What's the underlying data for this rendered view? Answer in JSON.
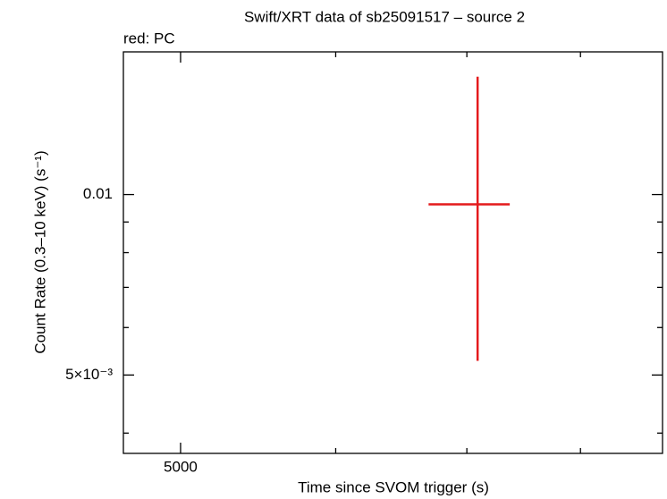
{
  "chart_data": {
    "type": "errorbar",
    "title": "Swift/XRT data of sb25091517 – source 2",
    "subtitle": "red: PC",
    "x_label": "Time since SVOM trigger (s)",
    "y_label": "Count Rate (0.3–10 keV) (s⁻¹)",
    "xscale": "log",
    "yscale": "log",
    "xlim": [
      4675,
      8810
    ],
    "ylim": [
      0.0037,
      0.0173
    ],
    "xticks": [
      5000
    ],
    "xminor": [
      6000,
      7000,
      8000
    ],
    "yticks": [
      {
        "value": 0.005,
        "label": "5×10⁻³"
      },
      0.01
    ],
    "yminor": [
      0.004,
      0.006,
      0.007,
      0.008,
      0.009
    ],
    "series": [
      {
        "name": "PC",
        "color": "#e41a1c",
        "x": [
          7089
        ],
        "xerr_minus": [
          397
        ],
        "xerr_plus": [
          273
        ],
        "values": [
          0.00963
        ],
        "yerr_minus": [
          0.00435
        ],
        "yerr_plus": [
          0.0061
        ]
      }
    ]
  }
}
